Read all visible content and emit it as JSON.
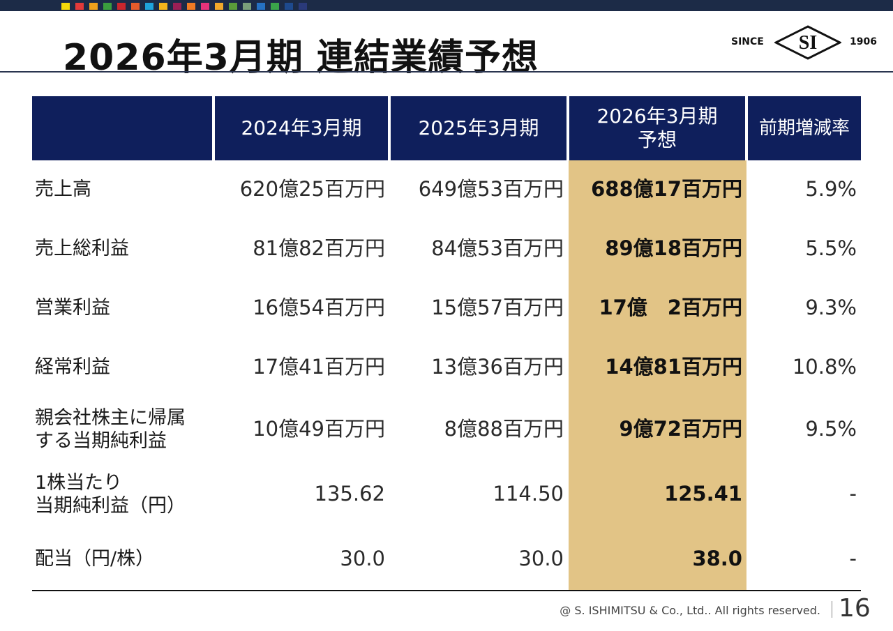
{
  "header": {
    "title": "2026年3月期 連結業績予想",
    "logo": {
      "since": "SINCE",
      "mark": "SI",
      "year": "1906"
    },
    "swatch_colors": [
      "#f5d90a",
      "#e23a3a",
      "#f0a21c",
      "#3a9d3e",
      "#c8262d",
      "#e55b2b",
      "#1fa3dc",
      "#f3b51c",
      "#9a1f55",
      "#f07b24",
      "#e6327a",
      "#f1a92b",
      "#5a9c3a",
      "#7a9f7a",
      "#2571c2",
      "#3aa34a",
      "#1e4a8e",
      "#2a3a7a"
    ]
  },
  "table": {
    "columns": [
      "",
      "2024年3月期",
      "2025年3月期",
      "2026年3月期\n予想",
      "前期増減率"
    ],
    "rows": [
      {
        "label": "売上高",
        "c2024": "620億25百万円",
        "c2025": "649億53百万円",
        "c2026": "688億17百万円",
        "rate": "5.9%"
      },
      {
        "label": "売上総利益",
        "c2024": "81億82百万円",
        "c2025": "84億53百万円",
        "c2026": "89億18百万円",
        "rate": "5.5%"
      },
      {
        "label": "営業利益",
        "c2024": "16億54百万円",
        "c2025": "15億57百万円",
        "c2026": "17億　2百万円",
        "rate": "9.3%"
      },
      {
        "label": "経常利益",
        "c2024": "17億41百万円",
        "c2025": "13億36百万円",
        "c2026": "14億81百万円",
        "rate": "10.8%"
      },
      {
        "label": "親会社株主に帰属\nする当期純利益",
        "c2024": "10億49百万円",
        "c2025": "8億88百万円",
        "c2026": "9億72百万円",
        "rate": "9.5%"
      },
      {
        "label": "1株当たり\n当期純利益（円）",
        "c2024": "135.62",
        "c2025": "114.50",
        "c2026": "125.41",
        "rate": "-"
      },
      {
        "label": "配当（円/株）",
        "c2024": "30.0",
        "c2025": "30.0",
        "c2026": "38.0",
        "rate": "-"
      }
    ]
  },
  "footer": {
    "copyright": "@ S. ISHIMITSU & Co., Ltd.. All rights reserved.",
    "page": "16"
  }
}
